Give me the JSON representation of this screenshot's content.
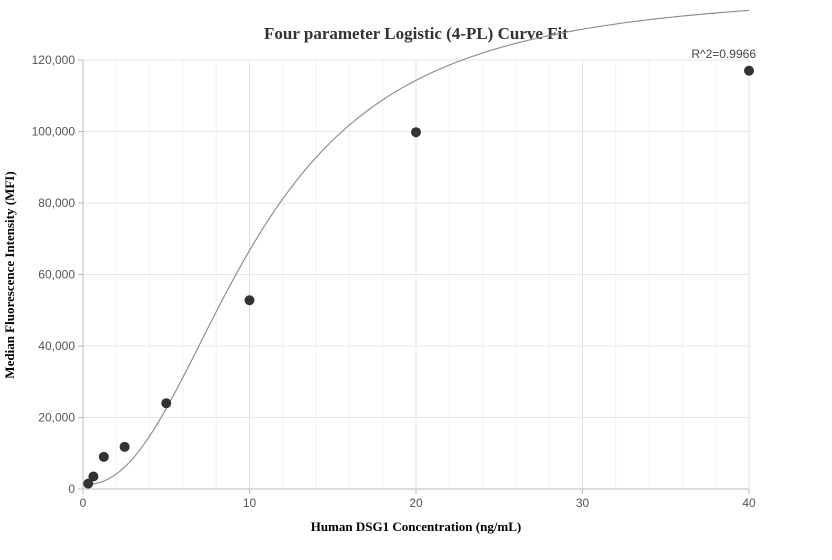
{
  "chart_data": {
    "type": "scatter",
    "title": "Four parameter Logistic (4-PL) Curve Fit",
    "xlabel": "Human DSG1 Concentration (ng/mL)",
    "ylabel": "Median Fluorescence Intensity (MFI)",
    "xlim": [
      0,
      40
    ],
    "ylim": [
      0,
      120000
    ],
    "x_ticks": [
      0,
      10,
      20,
      30,
      40
    ],
    "x_tick_labels": [
      "0",
      "10",
      "20",
      "30",
      "40"
    ],
    "y_ticks": [
      0,
      20000,
      40000,
      60000,
      80000,
      100000,
      120000
    ],
    "y_tick_labels": [
      "0",
      "20,000",
      "40,000",
      "60,000",
      "80,000",
      "100,000",
      "120,000"
    ],
    "grid": true,
    "series": [
      {
        "kind": "points",
        "x": [
          0.3125,
          0.625,
          1.25,
          2.5,
          5,
          10,
          20,
          40
        ],
        "y": [
          1500,
          3500,
          9000,
          11800,
          24000,
          52800,
          99800,
          117000
        ],
        "color": "#333333"
      },
      {
        "kind": "fit-curve",
        "model": "4PL",
        "params": {
          "A": 1200,
          "B": 2.3,
          "C": 10.5,
          "D": 140000
        },
        "color": "#888888"
      }
    ],
    "annotation": "R^2=0.9966"
  }
}
